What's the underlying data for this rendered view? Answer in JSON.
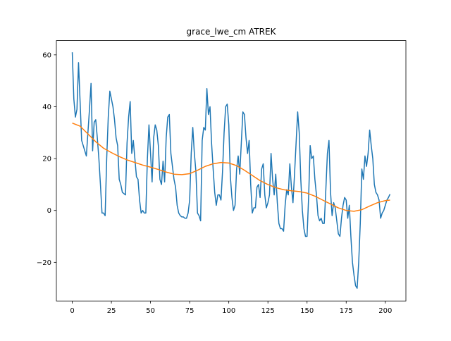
{
  "chart_data": {
    "type": "line",
    "title": "grace_lwe_cm ATREK",
    "x": [
      0,
      1,
      2,
      3,
      4,
      5,
      6,
      7,
      8,
      9,
      10,
      11,
      12,
      13,
      14,
      15,
      16,
      17,
      18,
      19,
      20,
      21,
      22,
      23,
      24,
      25,
      26,
      27,
      28,
      29,
      30,
      31,
      32,
      33,
      34,
      35,
      36,
      37,
      38,
      39,
      40,
      41,
      42,
      43,
      44,
      45,
      46,
      47,
      48,
      49,
      50,
      51,
      52,
      53,
      54,
      55,
      56,
      57,
      58,
      59,
      60,
      61,
      62,
      63,
      64,
      65,
      66,
      67,
      68,
      69,
      70,
      71,
      72,
      73,
      74,
      75,
      76,
      77,
      78,
      79,
      80,
      81,
      82,
      83,
      84,
      85,
      86,
      87,
      88,
      89,
      90,
      91,
      92,
      93,
      94,
      95,
      96,
      97,
      98,
      99,
      100,
      101,
      102,
      103,
      104,
      105,
      106,
      107,
      108,
      109,
      110,
      111,
      112,
      113,
      114,
      115,
      116,
      117,
      118,
      119,
      120,
      121,
      122,
      123,
      124,
      125,
      126,
      127,
      128,
      129,
      130,
      131,
      132,
      133,
      134,
      135,
      136,
      137,
      138,
      139,
      140,
      141,
      142,
      143,
      144,
      145,
      146,
      147,
      148,
      149,
      150,
      151,
      152,
      153,
      154,
      155,
      156,
      157,
      158,
      159,
      160,
      161,
      162,
      163,
      164,
      165,
      166,
      167,
      168,
      169,
      170,
      171,
      172,
      173,
      174,
      175,
      176,
      177,
      178,
      179,
      180,
      181,
      182,
      183,
      184,
      185,
      186,
      187,
      188,
      189,
      190,
      191,
      192,
      193,
      194,
      195,
      196,
      197,
      198,
      199,
      200,
      201,
      202,
      203
    ],
    "series": [
      {
        "color": "#1f77b4",
        "values": [
          61,
          43,
          36,
          39,
          57,
          42,
          27,
          25,
          23,
          21,
          30,
          39,
          49,
          23,
          34,
          35,
          28,
          20,
          10,
          -1,
          -1,
          -2,
          20,
          36,
          46,
          43,
          40,
          35,
          28,
          25,
          12,
          10,
          7,
          6.5,
          6,
          26,
          36,
          42,
          22,
          27,
          20,
          13,
          12,
          4,
          -1,
          0,
          -1,
          -1,
          20,
          33,
          22,
          11,
          28,
          33,
          31,
          25,
          12,
          10,
          19,
          11,
          28,
          36,
          37,
          22,
          17,
          12,
          9,
          2,
          -1,
          -2,
          -2.5,
          -2.5,
          -3,
          -3,
          -1,
          4,
          22,
          32,
          22,
          15,
          -1,
          -2,
          -4,
          27,
          32,
          31,
          47,
          37,
          40,
          26,
          16,
          7,
          2,
          6,
          6,
          4,
          15,
          30,
          40,
          41,
          33,
          13,
          5,
          0,
          2,
          16,
          21,
          14,
          26,
          38,
          37,
          28,
          22,
          27,
          10,
          -1,
          1,
          1,
          9,
          10,
          5,
          16,
          18,
          6,
          1,
          3,
          6,
          22,
          12,
          6,
          14,
          3,
          -5,
          -7,
          -7,
          -8,
          2,
          8,
          6,
          18,
          9,
          3,
          14,
          26,
          38,
          30,
          12,
          0,
          -7,
          -10,
          -10,
          5,
          25,
          20,
          21,
          12,
          6,
          -2,
          -4,
          -3,
          -5,
          -5,
          8,
          22,
          27,
          7,
          -2,
          3,
          1,
          -4,
          -9,
          -10,
          -3,
          2,
          5,
          4,
          -3,
          2,
          -10,
          -20,
          -25,
          -29,
          -30,
          -20,
          -5,
          16,
          12,
          21,
          17,
          22,
          31,
          25,
          20,
          10,
          7,
          6,
          4,
          -3,
          -1,
          0,
          2,
          4,
          5,
          6.3
        ]
      },
      {
        "color": "#ff7f0e",
        "x": [
          0,
          5,
          10,
          15,
          20,
          25,
          30,
          35,
          40,
          45,
          50,
          55,
          60,
          65,
          70,
          75,
          80,
          85,
          90,
          95,
          100,
          105,
          110,
          115,
          120,
          125,
          130,
          135,
          140,
          145,
          150,
          155,
          160,
          165,
          170,
          175,
          180,
          185,
          190,
          195,
          200,
          203
        ],
        "values": [
          33.7,
          32.5,
          29.5,
          26.5,
          24,
          22.3,
          20.8,
          19.5,
          18.5,
          17.5,
          16.7,
          15.8,
          14.8,
          14,
          13.8,
          14.2,
          15.5,
          17,
          18,
          18.5,
          18.3,
          17.3,
          15.5,
          13.5,
          11.5,
          10,
          8.8,
          8,
          7.6,
          7.3,
          6.7,
          5.5,
          4,
          2.5,
          1,
          0,
          -0.3,
          0.3,
          1.7,
          3,
          3.8,
          4
        ]
      }
    ],
    "xlim": [
      -10.15,
      213.15
    ],
    "xticks": [
      0,
      25,
      50,
      75,
      100,
      125,
      150,
      175,
      200
    ],
    "ylim": [
      -34.9,
      65.5
    ],
    "yticks": [
      {
        "value": -20,
        "label": "−20"
      },
      0,
      20,
      40,
      60
    ]
  }
}
